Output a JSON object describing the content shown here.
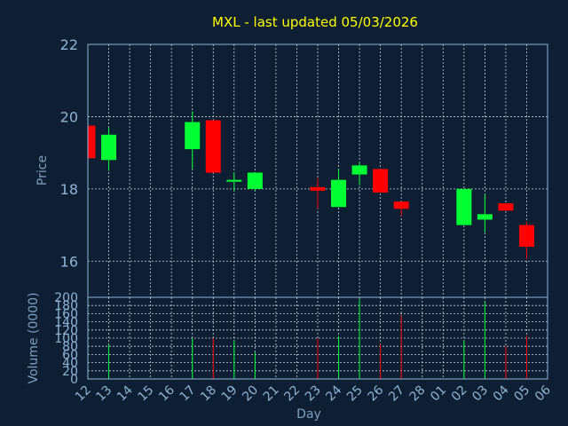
{
  "chart_data": {
    "type": "candlestick",
    "title": "MXL - last updated 05/03/2026",
    "xlabel": "Day",
    "price_panel": {
      "ylabel": "Price",
      "ylim": [
        15,
        22
      ],
      "yticks": [
        16,
        18,
        20,
        22
      ],
      "grid": true
    },
    "volume_panel": {
      "ylabel": "Volume (0000)",
      "ylim": [
        0,
        200
      ],
      "yticks": [
        0,
        20,
        40,
        60,
        80,
        100,
        120,
        140,
        160,
        180,
        200
      ],
      "grid": true
    },
    "x_tick_labels": [
      "12",
      "13",
      "14",
      "15",
      "16",
      "17",
      "18",
      "19",
      "20",
      "21",
      "22",
      "23",
      "24",
      "25",
      "26",
      "27",
      "28",
      "01",
      "02",
      "03",
      "04",
      "05",
      "06"
    ],
    "candles": [
      {
        "day": "12",
        "open": 19.75,
        "close": 18.85,
        "high": 19.75,
        "low": 18.85,
        "volume": 0
      },
      {
        "day": "13",
        "open": 18.8,
        "close": 19.5,
        "high": 19.7,
        "low": 18.5,
        "volume": 85
      },
      {
        "day": "17",
        "open": 19.1,
        "close": 19.85,
        "high": 20.15,
        "low": 18.55,
        "volume": 100
      },
      {
        "day": "18",
        "open": 19.9,
        "close": 18.45,
        "high": 19.9,
        "low": 18.45,
        "volume": 100
      },
      {
        "day": "19",
        "open": 18.2,
        "close": 18.25,
        "high": 18.45,
        "low": 17.95,
        "volume": 95
      },
      {
        "day": "20",
        "open": 18.0,
        "close": 18.45,
        "high": 18.45,
        "low": 17.95,
        "volume": 65
      },
      {
        "day": "23",
        "open": 18.05,
        "close": 17.95,
        "high": 18.3,
        "low": 17.45,
        "volume": 100
      },
      {
        "day": "24",
        "open": 17.5,
        "close": 18.25,
        "high": 18.55,
        "low": 17.5,
        "volume": 105
      },
      {
        "day": "25",
        "open": 18.4,
        "close": 18.65,
        "high": 18.75,
        "low": 18.1,
        "volume": 195
      },
      {
        "day": "26",
        "open": 18.55,
        "close": 17.9,
        "high": 18.55,
        "low": 17.9,
        "volume": 85
      },
      {
        "day": "27",
        "open": 17.65,
        "close": 17.45,
        "high": 17.65,
        "low": 17.25,
        "volume": 155
      },
      {
        "day": "02",
        "open": 17.0,
        "close": 18.0,
        "high": 18.0,
        "low": 17.0,
        "volume": 95
      },
      {
        "day": "03",
        "open": 17.15,
        "close": 17.3,
        "high": 17.85,
        "low": 16.8,
        "volume": 190
      },
      {
        "day": "04",
        "open": 17.6,
        "close": 17.4,
        "high": 17.6,
        "low": 17.4,
        "volume": 80
      },
      {
        "day": "05",
        "open": 17.0,
        "close": 16.4,
        "high": 17.1,
        "low": 16.05,
        "volume": 105
      }
    ]
  },
  "colors": {
    "background": "#0e1f33",
    "plot_border": "#8fb4d8",
    "grid": "#c8d4e0",
    "title": "#ffff00",
    "axis_label": "#7f9fc0",
    "tick_label": "#8fb4d8",
    "up": "#00ff33",
    "down": "#ff0000"
  }
}
